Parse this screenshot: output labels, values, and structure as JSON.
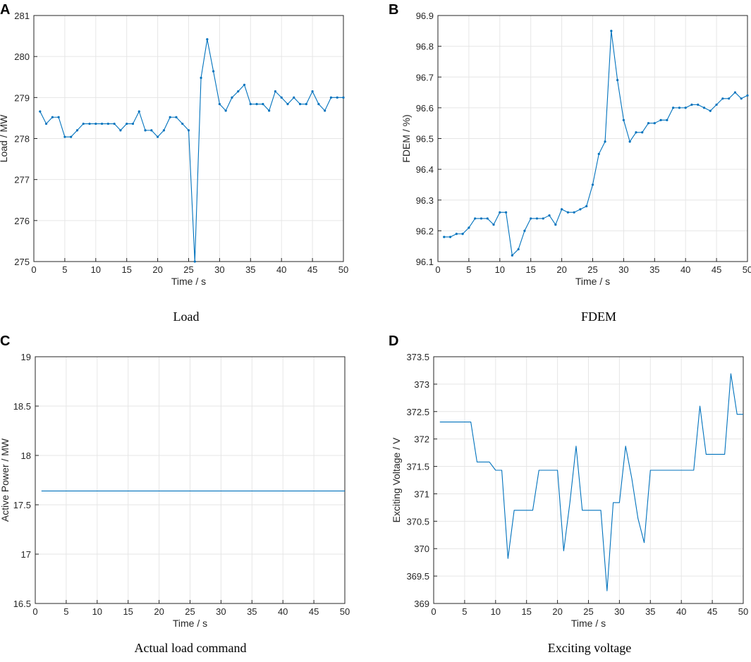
{
  "figure": {
    "panels": [
      {
        "label": "A",
        "caption": "Load"
      },
      {
        "label": "B",
        "caption": "FDEM"
      },
      {
        "label": "C",
        "caption": "Actual load command"
      },
      {
        "label": "D",
        "caption": "Exciting voltage"
      }
    ]
  },
  "colors": {
    "line": "#0072BD",
    "grid": "#e6e6e6",
    "axis": "#262626"
  },
  "chart_data": [
    {
      "type": "line",
      "title": "Load",
      "xlabel": "Time / s",
      "ylabel": "Load / MW",
      "xlim": [
        0,
        50
      ],
      "ylim": [
        275,
        281
      ],
      "xticks": [
        0,
        5,
        10,
        15,
        20,
        25,
        30,
        35,
        40,
        45,
        50
      ],
      "yticks": [
        275,
        276,
        277,
        278,
        279,
        280,
        281
      ],
      "ytick_labels": [
        "275",
        "276",
        "277",
        "278",
        "279",
        "280",
        "281"
      ],
      "markers": true,
      "grid": true,
      "series": [
        {
          "name": "Load",
          "x": [
            1,
            2,
            3,
            4,
            5,
            6,
            7,
            8,
            9,
            10,
            11,
            12,
            13,
            14,
            15,
            16,
            17,
            18,
            19,
            20,
            21,
            22,
            23,
            24,
            25,
            26,
            27,
            28,
            29,
            30,
            31,
            32,
            33,
            34,
            35,
            36,
            37,
            38,
            39,
            40,
            41,
            42,
            43,
            44,
            45,
            46,
            47,
            48,
            49,
            50
          ],
          "values": [
            278.66,
            278.36,
            278.52,
            278.52,
            278.04,
            278.04,
            278.2,
            278.36,
            278.36,
            278.36,
            278.36,
            278.36,
            278.36,
            278.2,
            278.36,
            278.36,
            278.66,
            278.2,
            278.2,
            278.04,
            278.2,
            278.52,
            278.52,
            278.36,
            278.2,
            275.0,
            279.48,
            280.42,
            279.64,
            278.84,
            278.68,
            279.0,
            279.15,
            279.31,
            278.84,
            278.84,
            278.84,
            278.68,
            279.15,
            279.0,
            278.84,
            279.0,
            278.84,
            278.84,
            279.15,
            278.84,
            278.68,
            279.0,
            279.0,
            279.0
          ]
        }
      ]
    },
    {
      "type": "line",
      "title": "FDEM",
      "xlabel": "Time / s",
      "ylabel": "FDEM / %)",
      "xlim": [
        0,
        50
      ],
      "ylim": [
        96.1,
        96.9
      ],
      "xticks": [
        0,
        5,
        10,
        15,
        20,
        25,
        30,
        35,
        40,
        45,
        50
      ],
      "yticks": [
        96.1,
        96.2,
        96.3,
        96.4,
        96.5,
        96.6,
        96.7,
        96.8,
        96.9
      ],
      "ytick_labels": [
        "96.1",
        "96.2",
        "96.3",
        "96.4",
        "96.5",
        "96.6",
        "96.7",
        "96.8",
        "96.9"
      ],
      "markers": true,
      "grid": true,
      "series": [
        {
          "name": "FDEM",
          "x": [
            1,
            2,
            3,
            4,
            5,
            6,
            7,
            8,
            9,
            10,
            11,
            12,
            13,
            14,
            15,
            16,
            17,
            18,
            19,
            20,
            21,
            22,
            23,
            24,
            25,
            26,
            27,
            28,
            29,
            30,
            31,
            32,
            33,
            34,
            35,
            36,
            37,
            38,
            39,
            40,
            41,
            42,
            43,
            44,
            45,
            46,
            47,
            48,
            49,
            50
          ],
          "values": [
            96.18,
            96.18,
            96.19,
            96.19,
            96.21,
            96.24,
            96.24,
            96.24,
            96.22,
            96.26,
            96.26,
            96.12,
            96.14,
            96.2,
            96.24,
            96.24,
            96.24,
            96.25,
            96.22,
            96.27,
            96.26,
            96.26,
            96.27,
            96.28,
            96.35,
            96.45,
            96.49,
            96.85,
            96.69,
            96.56,
            96.49,
            96.52,
            96.52,
            96.55,
            96.55,
            96.56,
            96.56,
            96.6,
            96.6,
            96.6,
            96.61,
            96.61,
            96.6,
            96.59,
            96.61,
            96.63,
            96.63,
            96.65,
            96.63,
            96.64
          ]
        }
      ]
    },
    {
      "type": "line",
      "title": "Actual load command",
      "xlabel": "Time / s",
      "ylabel": "Active Power / MW",
      "xlim": [
        0,
        50
      ],
      "ylim": [
        16.5,
        19
      ],
      "xticks": [
        0,
        5,
        10,
        15,
        20,
        25,
        30,
        35,
        40,
        45,
        50
      ],
      "yticks": [
        16.5,
        17,
        17.5,
        18,
        18.5,
        19
      ],
      "ytick_labels": [
        "16.5",
        "17",
        "17.5",
        "18",
        "18.5",
        "19"
      ],
      "markers": false,
      "grid": true,
      "series": [
        {
          "name": "Active Power",
          "x": [
            1,
            50
          ],
          "values": [
            17.64,
            17.64
          ]
        }
      ]
    },
    {
      "type": "line",
      "title": "Exciting voltage",
      "xlabel": "Time / s",
      "ylabel": "Exciting Voltage / V",
      "xlim": [
        0,
        50
      ],
      "ylim": [
        369,
        373.5
      ],
      "xticks": [
        0,
        5,
        10,
        15,
        20,
        25,
        30,
        35,
        40,
        45,
        50
      ],
      "yticks": [
        369,
        369.5,
        370,
        370.5,
        371,
        371.5,
        372,
        372.5,
        373,
        373.5
      ],
      "ytick_labels": [
        "369",
        "369.5",
        "370",
        "370.5",
        "371",
        "371.5",
        "372",
        "372.5",
        "373",
        "373.5"
      ],
      "markers": false,
      "grid": true,
      "series": [
        {
          "name": "Exciting Voltage",
          "x": [
            1,
            2,
            3,
            4,
            5,
            6,
            7,
            8,
            9,
            10,
            11,
            12,
            13,
            14,
            15,
            16,
            17,
            18,
            19,
            20,
            21,
            22,
            23,
            24,
            25,
            26,
            27,
            28,
            29,
            30,
            31,
            32,
            33,
            34,
            35,
            36,
            37,
            38,
            39,
            40,
            41,
            42,
            43,
            44,
            45,
            46,
            47,
            48,
            49,
            50
          ],
          "values": [
            372.31,
            372.31,
            372.31,
            372.31,
            372.31,
            372.31,
            371.58,
            371.58,
            371.58,
            371.43,
            371.43,
            369.82,
            370.7,
            370.7,
            370.7,
            370.7,
            371.43,
            371.43,
            371.43,
            371.43,
            369.96,
            370.84,
            371.87,
            370.7,
            370.7,
            370.7,
            370.7,
            369.23,
            370.84,
            370.84,
            371.87,
            371.28,
            370.55,
            370.11,
            371.43,
            371.43,
            371.43,
            371.43,
            371.43,
            371.43,
            371.43,
            371.43,
            372.6,
            371.72,
            371.72,
            371.72,
            371.72,
            373.19,
            372.45,
            372.45
          ]
        }
      ]
    }
  ]
}
